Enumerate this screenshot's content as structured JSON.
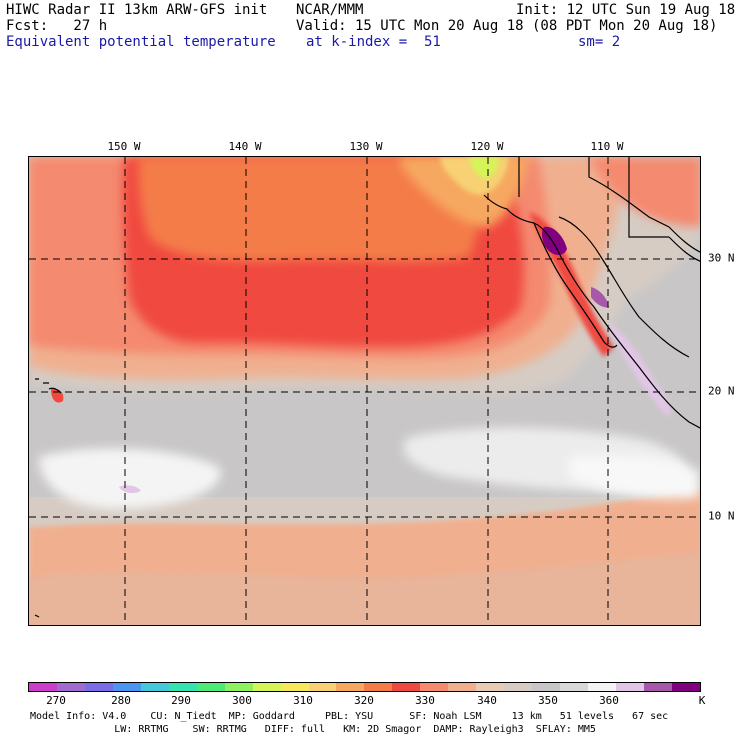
{
  "header": {
    "line1_left": "HIWC Radar II 13km ARW-GFS init",
    "line1_mid": "NCAR/MMM",
    "line1_right": "Init: 12 UTC Sun 19 Aug 18",
    "line2_left": "Fcst:   27 h",
    "line2_right": "Valid: 15 UTC Mon 20 Aug 18 (08 PDT Mon 20 Aug 18)",
    "line3_left": "Equivalent potential temperature",
    "line3_mid": "at k-index =  51",
    "line3_right": "sm= 2"
  },
  "map": {
    "lon_labels": [
      "150 W",
      "140 W",
      "130 W",
      "120 W",
      "110 W"
    ],
    "lat_labels": [
      "30 N",
      "20 N",
      "10 N"
    ]
  },
  "colorbar": {
    "colors": [
      "#c93fc9",
      "#a06cd0",
      "#7a6de6",
      "#4a96f0",
      "#46c8dc",
      "#34e3b1",
      "#4eea78",
      "#8ef260",
      "#d6f45a",
      "#f5e85a",
      "#f7d173",
      "#f7a860",
      "#f47c48",
      "#f04a40",
      "#f48a70",
      "#f0b090",
      "#e8cbb4",
      "#d6ccc4",
      "#c8c6c6",
      "#d8d8d8",
      "#f4f4f4",
      "#e2c6e6",
      "#a858a8",
      "#800080"
    ],
    "labels": [
      "270",
      "280",
      "290",
      "300",
      "310",
      "320",
      "330",
      "340",
      "350",
      "360",
      "K"
    ]
  },
  "footer": {
    "line1": "Model Info: V4.0    CU: N_Tiedt  MP: Goddard     PBL: YSU      SF: Noah LSM     13 km   51 levels   67 sec",
    "line2": "              LW: RRTMG    SW: RRTMG   DIFF: full   KM: 2D Smagor  DAMP: Rayleigh3  SFLAY: MM5"
  }
}
